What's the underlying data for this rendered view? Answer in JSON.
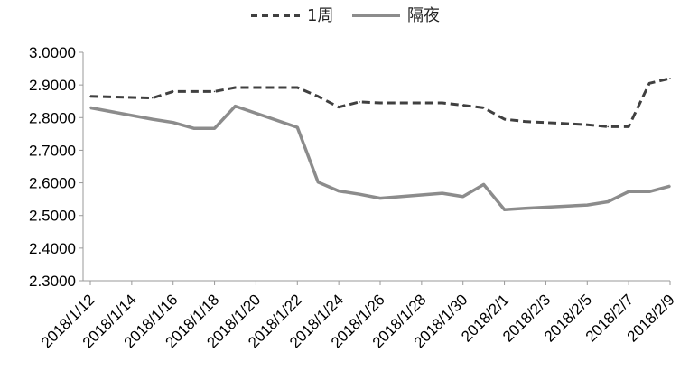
{
  "chart_data": {
    "type": "line",
    "title": "",
    "xlabel": "",
    "ylabel": "",
    "ylim": [
      2.3,
      3.0
    ],
    "y_ticks": [
      "3.0000",
      "2.9000",
      "2.8000",
      "2.7000",
      "2.6000",
      "2.5000",
      "2.4000",
      "2.3000"
    ],
    "x_ticks": [
      "2018/1/12",
      "2018/1/14",
      "2018/1/16",
      "2018/1/18",
      "2018/1/20",
      "2018/1/22",
      "2018/1/24",
      "2018/1/26",
      "2018/1/28",
      "2018/1/30",
      "2018/2/1",
      "2018/2/3",
      "2018/2/5",
      "2018/2/7",
      "2018/2/9"
    ],
    "x": [
      "2018/1/12",
      "2018/1/15",
      "2018/1/16",
      "2018/1/17",
      "2018/1/18",
      "2018/1/19",
      "2018/1/22",
      "2018/1/23",
      "2018/1/24",
      "2018/1/25",
      "2018/1/26",
      "2018/1/29",
      "2018/1/30",
      "2018/1/31",
      "2018/2/1",
      "2018/2/2",
      "2018/2/5",
      "2018/2/6",
      "2018/2/7",
      "2018/2/8",
      "2018/2/9"
    ],
    "grid": false,
    "legend": "top",
    "series": [
      {
        "name": "1周",
        "style": "dashed",
        "color": "#404040",
        "values": [
          2.865,
          2.86,
          2.88,
          2.88,
          2.88,
          2.892,
          2.892,
          2.865,
          2.832,
          2.848,
          2.845,
          2.845,
          2.838,
          2.83,
          2.795,
          2.788,
          2.778,
          2.772,
          2.772,
          2.905,
          2.92
        ]
      },
      {
        "name": "隔夜",
        "style": "solid",
        "color": "#8c8c8c",
        "values": [
          2.83,
          2.795,
          2.785,
          2.767,
          2.767,
          2.835,
          2.77,
          2.602,
          2.575,
          2.565,
          2.553,
          2.568,
          2.558,
          2.595,
          2.518,
          2.522,
          2.532,
          2.542,
          2.573,
          2.573,
          2.59
        ]
      }
    ]
  }
}
